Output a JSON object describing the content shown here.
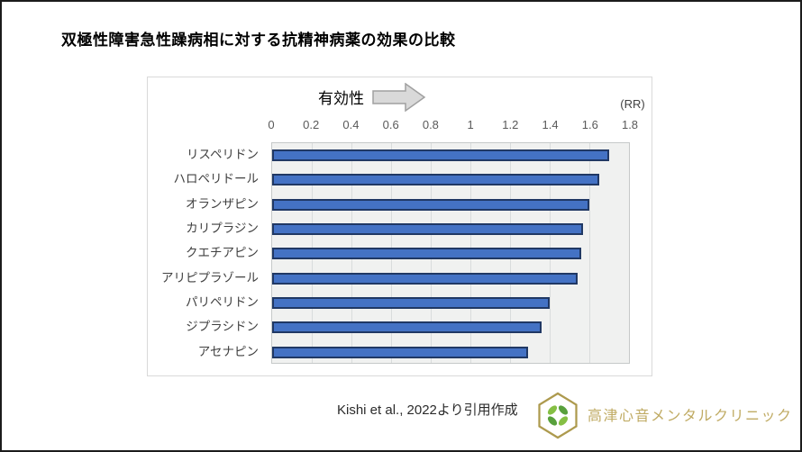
{
  "page": {
    "title": "双極性障害急性躁病相に対する抗精神病薬の効果の比較"
  },
  "chart": {
    "direction_label": "有効性",
    "unit_label": "(RR)"
  },
  "chart_data": {
    "type": "bar",
    "orientation": "horizontal",
    "title": "双極性障害急性躁病相に対する抗精神病薬の効果の比較",
    "xlabel": "(RR)",
    "xlim": [
      0,
      1.8
    ],
    "tick_labels": [
      "0",
      "0.2",
      "0.4",
      "0.6",
      "0.8",
      "1",
      "1.2",
      "1.4",
      "1.6",
      "1.8"
    ],
    "grid": true,
    "categories": [
      "リスペリドン",
      "ハロペリドール",
      "オランザピン",
      "カリプラジン",
      "クエチアピン",
      "アリピプラゾール",
      "パリペリドン",
      "ジプラシドン",
      "アセナピン"
    ],
    "values": [
      1.7,
      1.65,
      1.6,
      1.57,
      1.56,
      1.54,
      1.4,
      1.36,
      1.29
    ]
  },
  "footer": {
    "citation": "Kishi et al., 2022より引用作成",
    "clinic_name": "高津心音メンタルクリニック"
  },
  "colors": {
    "bar_fill": "#4472c4",
    "bar_border": "#203864",
    "plot_background": "#f0f1f0",
    "gridline": "#d9dcdc",
    "arrow_fill": "#d9d9d9",
    "arrow_stroke": "#a0a0a0",
    "brand_gold": "#c0ab64",
    "leaf_green_light": "#85bf44",
    "leaf_green_dark": "#58a03c"
  }
}
